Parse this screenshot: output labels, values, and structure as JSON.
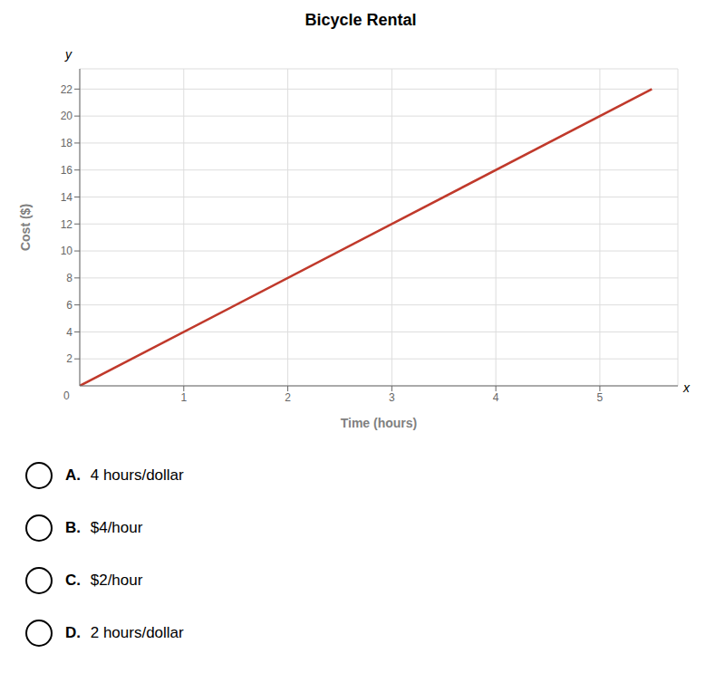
{
  "chart_data": {
    "type": "line",
    "title": "Bicycle Rental",
    "xlabel": "Time (hours)",
    "ylabel": "Cost ($)",
    "series": [
      {
        "name": "Cost",
        "color": "#c0392b",
        "x": [
          0,
          5.5
        ],
        "values": [
          0,
          22
        ]
      }
    ],
    "xlim": [
      0,
      5.75
    ],
    "ylim": [
      0,
      23.5
    ],
    "xticks": [
      1,
      2,
      3,
      4,
      5
    ],
    "yticks": [
      2,
      4,
      6,
      8,
      10,
      12,
      14,
      16,
      18,
      20,
      22
    ],
    "grid": true,
    "annotations": [
      "x",
      "y",
      "0"
    ],
    "options": [
      {
        "label": "A.",
        "text": " 4 hours/dollar"
      },
      {
        "label": "B.",
        "text": " $4/hour"
      },
      {
        "label": "C.",
        "text": " $2/hour"
      },
      {
        "label": "D.",
        "text": " 2 hours/dollar"
      }
    ]
  }
}
